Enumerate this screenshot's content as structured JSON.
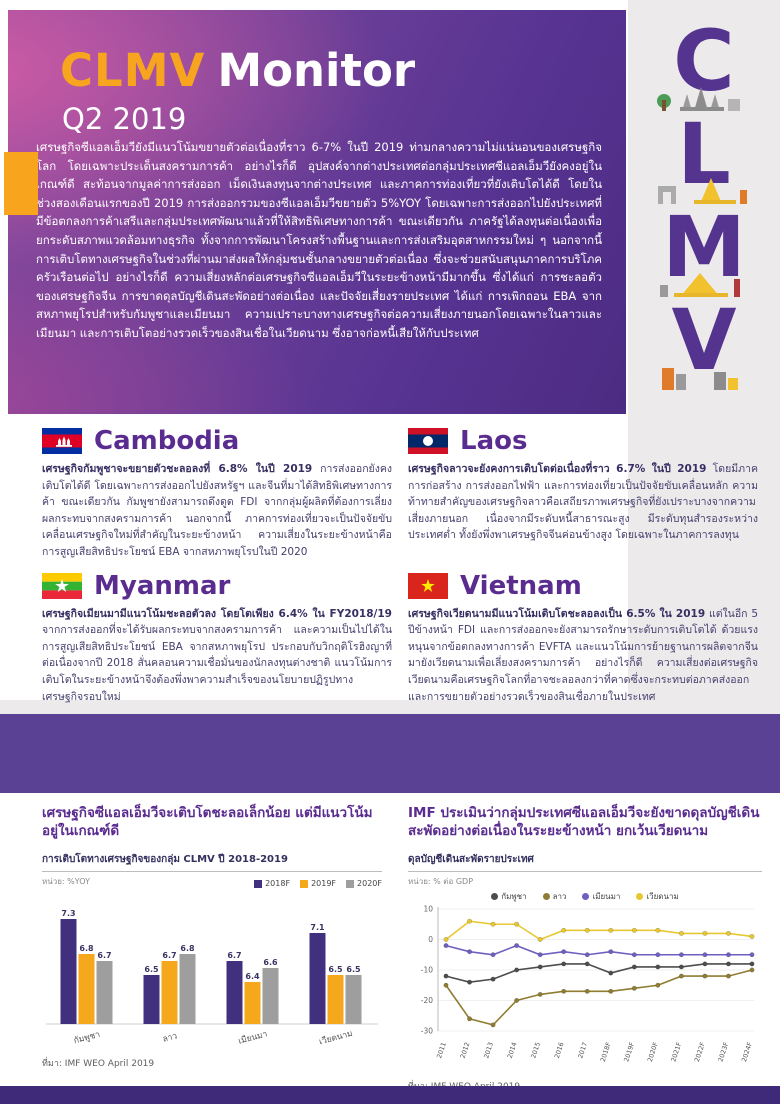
{
  "header": {
    "brand": "CLMV",
    "brand_suffix": "Monitor",
    "subtitle": "Q2 2019"
  },
  "intro": "เศรษฐกิจซีแอลเอ็มวียังมีแนวโน้มขยายตัวต่อเนื่องที่ราว 6-7% ในปี 2019 ท่ามกลางความไม่แน่นอนของเศรษฐกิจโลก โดยเฉพาะประเด็นสงครามการค้า อย่างไรก็ดี อุปสงค์จากต่างประเทศต่อกลุ่มประเทศซีแอลเอ็มวียังคงอยู่ในเกณฑ์ดี สะท้อนจากมูลค่าการส่งออก เม็ดเงินลงทุนจากต่างประเทศ และภาคการท่องเที่ยวที่ยังเติบโตได้ดี โดยในช่วงสองเดือนแรกของปี 2019 การส่งออกรวมของซีแอลเอ็มวีขยายตัว 5%YOY โดยเฉพาะการส่งออกไปยังประเทศที่มีข้อตกลงการค้าเสรีและกลุ่มประเทศพัฒนาแล้วที่ให้สิทธิพิเศษทางการค้า ขณะเดียวกัน ภาครัฐได้ลงทุนต่อเนื่องเพื่อยกระดับสภาพแวดล้อมทางธุรกิจ ทั้งจากการพัฒนาโครงสร้างพื้นฐานและการส่งเสริมอุตสาหกรรมใหม่ ๆ นอกจากนี้การเติบโตทางเศรษฐกิจในช่วงที่ผ่านมาส่งผลให้กลุ่มชนชั้นกลางขยายตัวต่อเนื่อง ซึ่งจะช่วยสนับสนุนภาคการบริโภคครัวเรือนต่อไป อย่างไรก็ดี ความเสี่ยงหลักต่อเศรษฐกิจซีแอลเอ็มวีในระยะข้างหน้ามีมากขึ้น ซึ่งได้แก่ การชะลอตัวของเศรษฐกิจจีน การขาดดุลบัญชีเดินสะพัดอย่างต่อเนื่อง และปัจจัยเสี่ยงรายประเทศ ได้แก่ การเพิกถอน EBA จากสหภาพยุโรปสำหรับกัมพูชาและเมียนมา ความเปราะบางทางเศรษฐกิจต่อความเสี่ยงภายนอกโดยเฉพาะในลาวและเมียนมา และการเติบโตอย่างรวดเร็วของสินเชื่อในเวียดนาม ซึ่งอาจก่อหนี้เสียให้กับประเทศ",
  "letters": [
    "C",
    "L",
    "M",
    "V"
  ],
  "countries": [
    {
      "name": "Cambodia",
      "lead": "เศรษฐกิจกัมพูชาจะขยายตัวชะลอลงที่ 6.8% ในปี 2019",
      "body": "การส่งออกยังคงเติบโตได้ดี โดยเฉพาะการส่งออกไปยังสหรัฐฯ และจีนที่มาได้สิทธิพิเศษทางการค้า ขณะเดียวกัน กัมพูชายังสามารถดึงดูด FDI จากกลุ่มผู้ผลิตที่ต้องการเลี่ยงผลกระทบจากสงครามการค้า นอกจากนี้ ภาคการท่องเที่ยวจะเป็นปัจจัยขับเคลื่อนเศรษฐกิจใหม่ที่สำคัญในระยะข้างหน้า ความเสี่ยงในระยะข้างหน้าคือการสูญเสียสิทธิประโยชน์ EBA จากสหภาพยุโรปในปี 2020"
    },
    {
      "name": "Laos",
      "lead": "เศรษฐกิจลาวจะยังคงการเติบโตต่อเนื่องที่ราว 6.7% ในปี 2019",
      "body": "โดยมีภาคการก่อสร้าง การส่งออกไฟฟ้า และการท่องเที่ยวเป็นปัจจัยขับเคลื่อนหลัก ความท้าทายสำคัญของเศรษฐกิจลาวคือเสถียรภาพเศรษฐกิจที่ยังเปราะบางจากความเสี่ยงภายนอก เนื่องจากมีระดับหนี้สาธารณะสูง มีระดับทุนสำรองระหว่างประเทศต่ำ ทั้งยังพึ่งพาเศรษฐกิจจีนค่อนข้างสูง โดยเฉพาะในภาคการลงทุน"
    },
    {
      "name": "Myanmar",
      "lead": "เศรษฐกิจเมียนมามีแนวโน้มชะลอตัวลง โดยโตเพียง 6.4% ใน FY2018/19",
      "body": "จากการส่งออกที่จะได้รับผลกระทบจากสงครามการค้า และความเป็นไปได้ในการสูญเสียสิทธิประโยชน์ EBA จากสหภาพยุโรป ประกอบกับวิกฤติโรฮิงญาที่ต่อเนื่องจากปี 2018 สั่นคลอนความเชื่อมั่นของนักลงทุนต่างชาติ แนวโน้มการเติบโตในระยะข้างหน้าจึงต้องพึ่งพาความสำเร็จของนโยบายปฏิรูปทางเศรษฐกิจรอบใหม่"
    },
    {
      "name": "Vietnam",
      "lead": "เศรษฐกิจเวียดนามมีแนวโน้มเติบโตชะลอลงเป็น 6.5% ใน 2019",
      "body": "แต่ในอีก 5 ปีข้างหน้า FDI และการส่งออกจะยังสามารถรักษาระดับการเติบโตได้ ด้วยแรงหนุนจากข้อตกลงทางการค้า EVFTA และแนวโน้มการย้ายฐานการผลิตจากจีนมายังเวียดนามเพื่อเลี่ยงสงครามการค้า อย่างไรก็ดี ความเสี่ยงต่อเศรษฐกิจเวียดนามคือเศรษฐกิจโลกที่อาจชะลอลงกว่าที่คาดซึ่งจะกระทบต่อภาคส่งออก และการขยายตัวอย่างรวดเร็วของสินเชื่อภายในประเทศ"
    }
  ],
  "charts": {
    "left_heading": "เศรษฐกิจซีแอลเอ็มวีจะเติบโตชะลอเล็กน้อย แต่มีแนวโน้มอยู่ในเกณฑ์ดี",
    "right_heading": "IMF ประเมินว่ากลุ่มประเทศซีแอลเอ็มวีจะยังขาดดุลบัญชีเดินสะพัดอย่างต่อเนื่องในระยะข้างหน้า ยกเว้นเวียดนาม"
  },
  "chart_data": [
    {
      "type": "bar",
      "title": "การเติบโตทางเศรษฐกิจของกลุ่ม CLMV ปี 2018-2019",
      "unit": "หน่วย: %YOY",
      "categories": [
        "กัมพูชา",
        "ลาว",
        "เมียนมา",
        "เวียดนาม"
      ],
      "series": [
        {
          "name": "2018F",
          "color": "#41307e",
          "values": [
            7.3,
            6.5,
            6.7,
            7.1
          ]
        },
        {
          "name": "2019F",
          "color": "#f5a81c",
          "values": [
            6.8,
            6.7,
            6.4,
            6.5
          ]
        },
        {
          "name": "2020F",
          "color": "#9e9e9e",
          "values": [
            6.7,
            6.8,
            6.6,
            6.5
          ]
        }
      ],
      "ylim": [
        5.8,
        7.6
      ],
      "legend_position": "top-right",
      "grid": false,
      "source": "ที่มา: IMF WEO April 2019"
    },
    {
      "type": "line",
      "title": "ดุลบัญชีเดินสะพัดรายประเทศ",
      "unit": "หน่วย: % ต่อ GDP",
      "x": [
        "2011",
        "2012",
        "2013",
        "2014",
        "2015",
        "2016",
        "2017",
        "2018F",
        "2019F",
        "2020F",
        "2021F",
        "2022F",
        "2023F",
        "2024F"
      ],
      "series": [
        {
          "name": "กัมพูชา",
          "color": "#4d4d4d",
          "values": [
            -12,
            -14,
            -13,
            -10,
            -9,
            -8,
            -8,
            -11,
            -9,
            -9,
            -9,
            -8,
            -8,
            -8
          ]
        },
        {
          "name": "ลาว",
          "color": "#8f7d33",
          "values": [
            -15,
            -26,
            -28,
            -20,
            -18,
            -17,
            -17,
            -17,
            -16,
            -15,
            -12,
            -12,
            -12,
            -10
          ]
        },
        {
          "name": "เมียนมา",
          "color": "#6f5fc0",
          "values": [
            -2,
            -4,
            -5,
            -2,
            -5,
            -4,
            -5,
            -4,
            -5,
            -5,
            -5,
            -5,
            -5,
            -5
          ]
        },
        {
          "name": "เวียดนาม",
          "color": "#e8c832",
          "values": [
            0,
            6,
            5,
            5,
            0,
            3,
            3,
            3,
            3,
            3,
            2,
            2,
            2,
            1
          ]
        }
      ],
      "ylim": [
        -30,
        10
      ],
      "yticks": [
        10,
        0,
        -10,
        -20,
        -30
      ],
      "legend_position": "top",
      "grid": true,
      "source": "ที่มา: IMF WEO April 2019"
    }
  ],
  "accent_colors": {
    "brand_orange": "#f7a51f",
    "banner_purple": "#57338f",
    "band_purple": "#5a4193",
    "footer_purple": "#3e2a78",
    "heading_purple": "#5b2c90"
  }
}
